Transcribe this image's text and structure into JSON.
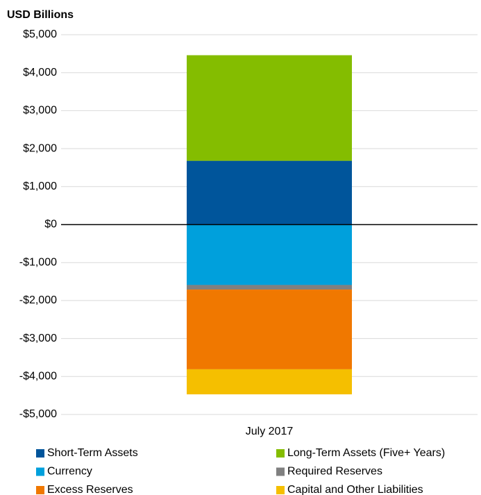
{
  "chart_data": {
    "type": "stacked_bar",
    "y_axis_label": "USD Billions",
    "categories": [
      "July 2017"
    ],
    "series": [
      {
        "name": "Short-Term Assets",
        "color": "#00559b",
        "values": [
          1680
        ]
      },
      {
        "name": "Long-Term Assets (Five+ Years)",
        "color": "#84bd00",
        "values": [
          2780
        ]
      },
      {
        "name": "Currency",
        "color": "#00a0dc",
        "values": [
          -1590
        ]
      },
      {
        "name": "Required Reserves",
        "color": "#808080",
        "values": [
          -120
        ]
      },
      {
        "name": "Excess Reserves",
        "color": "#f07800",
        "values": [
          -2100
        ]
      },
      {
        "name": "Capital and Other Liabilities",
        "color": "#f5bf00",
        "values": [
          -660
        ]
      }
    ],
    "ylim": [
      -5000,
      5000
    ],
    "yticks": [
      {
        "value": -5000,
        "label": "-$5,000"
      },
      {
        "value": -4000,
        "label": "-$4,000"
      },
      {
        "value": -3000,
        "label": "-$3,000"
      },
      {
        "value": -2000,
        "label": "-$2,000"
      },
      {
        "value": -1000,
        "label": "-$1,000"
      },
      {
        "value": 0,
        "label": "$0"
      },
      {
        "value": 1000,
        "label": "$1,000"
      },
      {
        "value": 2000,
        "label": "$2,000"
      },
      {
        "value": 3000,
        "label": "$3,000"
      },
      {
        "value": 4000,
        "label": "$4,000"
      },
      {
        "value": 5000,
        "label": "$5,000"
      }
    ],
    "grid": true,
    "legend": "bottom"
  }
}
